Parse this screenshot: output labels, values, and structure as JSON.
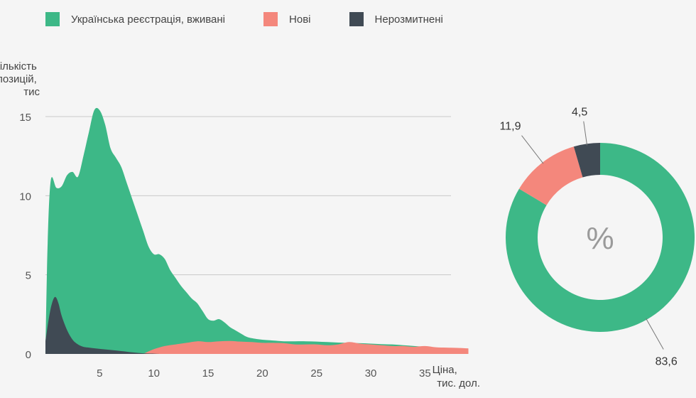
{
  "legend": [
    {
      "label": "Українська реєстрація, вживані",
      "color": "#3db887"
    },
    {
      "label": "Нові",
      "color": "#f4877c"
    },
    {
      "label": "Нерозмитнені",
      "color": "#404a54"
    }
  ],
  "chart_data": [
    {
      "type": "area",
      "ylabel": [
        "Кількість",
        "позицій,",
        "тис"
      ],
      "xlabel": [
        "Ціна,",
        "тис. дол."
      ],
      "xlim": [
        0,
        41
      ],
      "ylim": [
        0,
        15
      ],
      "x_ticks": [
        5,
        10,
        15,
        20,
        25,
        30,
        35
      ],
      "y_ticks": [
        0,
        5,
        10,
        15
      ],
      "grid": true,
      "series": [
        {
          "name": "Українська реєстрація, вживані",
          "color": "#3db887",
          "points": [
            [
              0,
              0
            ],
            [
              0.2,
              7
            ],
            [
              0.5,
              11
            ],
            [
              1,
              10.5
            ],
            [
              1.5,
              10.6
            ],
            [
              2,
              11.3
            ],
            [
              2.5,
              11.5
            ],
            [
              3,
              11.2
            ],
            [
              3.5,
              12.5
            ],
            [
              4,
              14
            ],
            [
              4.5,
              15.4
            ],
            [
              5,
              15.4
            ],
            [
              5.5,
              14.5
            ],
            [
              6,
              13
            ],
            [
              6.5,
              12.4
            ],
            [
              7,
              11.8
            ],
            [
              7.5,
              10.8
            ],
            [
              8,
              9.8
            ],
            [
              8.5,
              8.8
            ],
            [
              9,
              7.8
            ],
            [
              9.5,
              6.8
            ],
            [
              10,
              6.3
            ],
            [
              10.5,
              6.3
            ],
            [
              11,
              6
            ],
            [
              11.5,
              5.3
            ],
            [
              12,
              4.8
            ],
            [
              12.5,
              4.3
            ],
            [
              13,
              3.9
            ],
            [
              13.5,
              3.5
            ],
            [
              14,
              3.2
            ],
            [
              14.5,
              2.7
            ],
            [
              15,
              2.2
            ],
            [
              15.5,
              2.1
            ],
            [
              16,
              2.2
            ],
            [
              16.5,
              2
            ],
            [
              17,
              1.7
            ],
            [
              17.5,
              1.5
            ],
            [
              18,
              1.3
            ],
            [
              18.5,
              1.1
            ],
            [
              19,
              1
            ],
            [
              20,
              0.9
            ],
            [
              21,
              0.85
            ],
            [
              22,
              0.8
            ],
            [
              23,
              0.8
            ],
            [
              24,
              0.8
            ],
            [
              25,
              0.78
            ],
            [
              26,
              0.75
            ],
            [
              27,
              0.72
            ],
            [
              28,
              0.7
            ],
            [
              29,
              0.68
            ],
            [
              30,
              0.65
            ],
            [
              31,
              0.62
            ],
            [
              32,
              0.6
            ],
            [
              33,
              0.55
            ],
            [
              34,
              0.5
            ],
            [
              35,
              0.45
            ],
            [
              36,
              0.4
            ],
            [
              37,
              0.35
            ],
            [
              38,
              0.3
            ],
            [
              39,
              0.28
            ]
          ]
        },
        {
          "name": "Нові",
          "color": "#f4877c",
          "points": [
            [
              9,
              0
            ],
            [
              10,
              0.3
            ],
            [
              11,
              0.5
            ],
            [
              12,
              0.6
            ],
            [
              13,
              0.7
            ],
            [
              14,
              0.8
            ],
            [
              15,
              0.75
            ],
            [
              16,
              0.8
            ],
            [
              17,
              0.82
            ],
            [
              18,
              0.78
            ],
            [
              19,
              0.75
            ],
            [
              20,
              0.7
            ],
            [
              21,
              0.7
            ],
            [
              22,
              0.68
            ],
            [
              23,
              0.6
            ],
            [
              24,
              0.6
            ],
            [
              25,
              0.6
            ],
            [
              26,
              0.55
            ],
            [
              27,
              0.6
            ],
            [
              28,
              0.75
            ],
            [
              29,
              0.65
            ],
            [
              30,
              0.6
            ],
            [
              31,
              0.55
            ],
            [
              32,
              0.5
            ],
            [
              33,
              0.5
            ],
            [
              34,
              0.45
            ],
            [
              35,
              0.5
            ],
            [
              36,
              0.42
            ],
            [
              37,
              0.4
            ],
            [
              38,
              0.38
            ],
            [
              39,
              0.35
            ]
          ]
        },
        {
          "name": "Нерозмитнені",
          "color": "#404a54",
          "points": [
            [
              0,
              0.8
            ],
            [
              0.3,
              2.2
            ],
            [
              0.6,
              3.2
            ],
            [
              0.9,
              3.6
            ],
            [
              1.2,
              3.2
            ],
            [
              1.5,
              2.4
            ],
            [
              2,
              1.5
            ],
            [
              2.5,
              0.9
            ],
            [
              3,
              0.6
            ],
            [
              3.5,
              0.45
            ],
            [
              4,
              0.4
            ],
            [
              5,
              0.32
            ],
            [
              6,
              0.25
            ],
            [
              7,
              0.18
            ],
            [
              8,
              0.1
            ],
            [
              9,
              0.04
            ],
            [
              10,
              0.02
            ],
            [
              10.5,
              0
            ]
          ]
        }
      ]
    },
    {
      "type": "pie",
      "center_label": "%",
      "slices": [
        {
          "label": "83,6",
          "value": 83.6,
          "color": "#3db887"
        },
        {
          "label": "11,9",
          "value": 11.9,
          "color": "#f4877c"
        },
        {
          "label": "4,5",
          "value": 4.5,
          "color": "#404a54"
        }
      ]
    }
  ]
}
